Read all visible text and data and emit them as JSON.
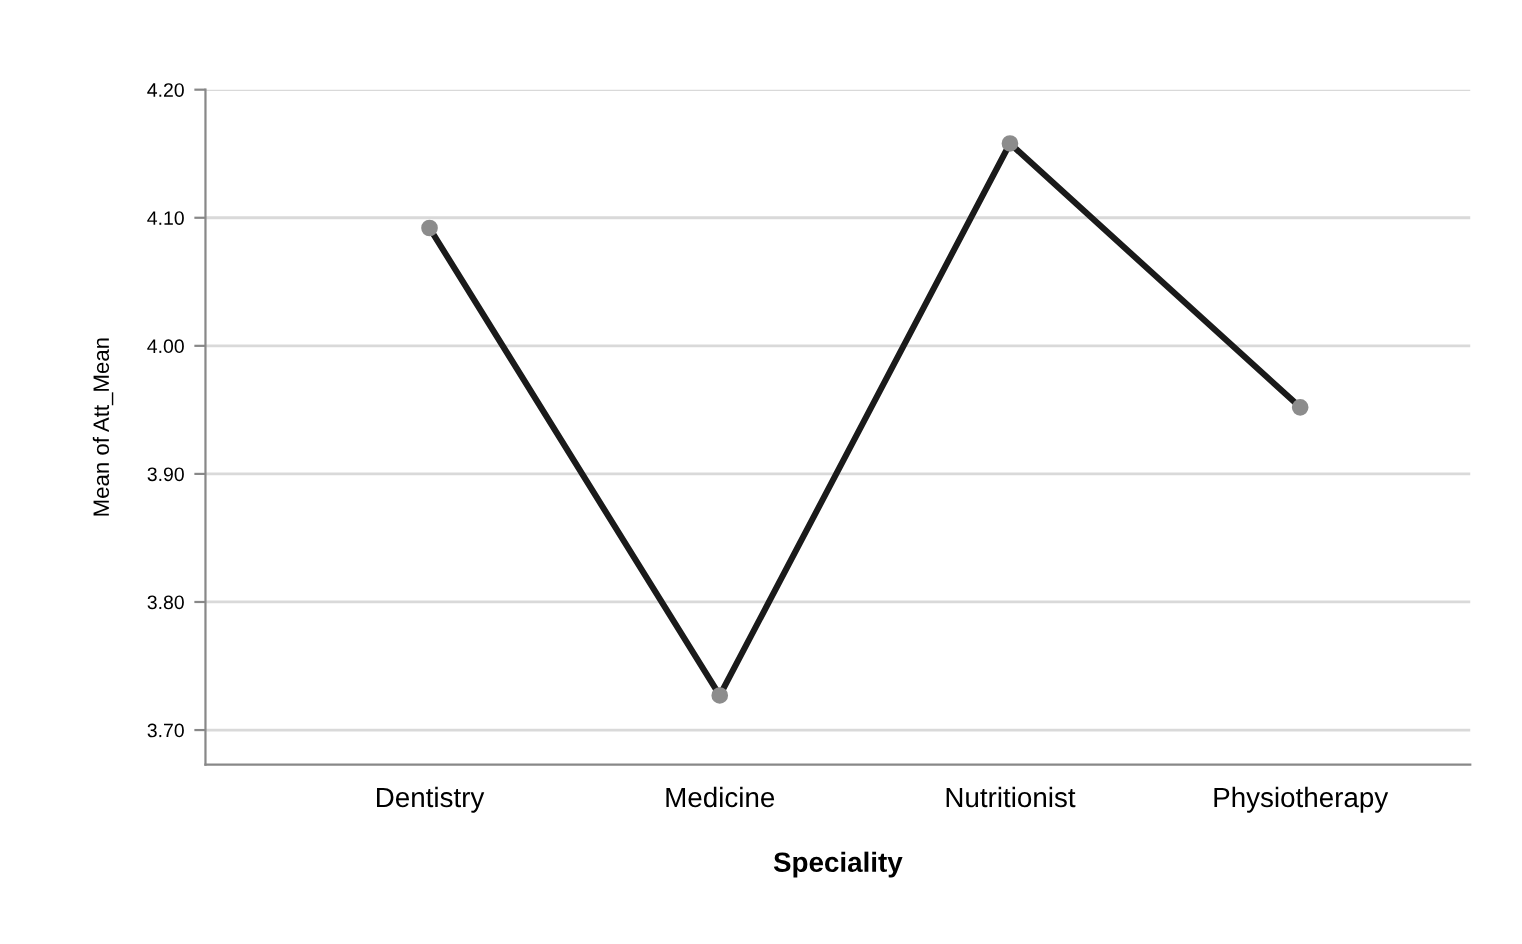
{
  "chart_data": {
    "type": "line",
    "xlabel": "Speciality",
    "ylabel": "Mean of Att_Mean",
    "categories": [
      "Dentistry",
      "Medicine",
      "Nutritionist",
      "Physiotherapy"
    ],
    "series": [
      {
        "color": "#1a1a1a",
        "values": [
          4.092,
          3.727,
          4.158,
          3.952
        ]
      }
    ],
    "ylim": [
      3.673,
      4.2
    ],
    "yticks": [
      {
        "value": 3.7,
        "label": "3.70"
      },
      {
        "value": 3.8,
        "label": "3.80"
      },
      {
        "value": 3.9,
        "label": "3.90"
      },
      {
        "value": 4.0,
        "label": "4.00"
      },
      {
        "value": 4.1,
        "label": "4.10"
      },
      {
        "value": 4.2,
        "label": "4.20"
      }
    ],
    "grid": "y",
    "marker": "circle",
    "line_style": "solid"
  }
}
